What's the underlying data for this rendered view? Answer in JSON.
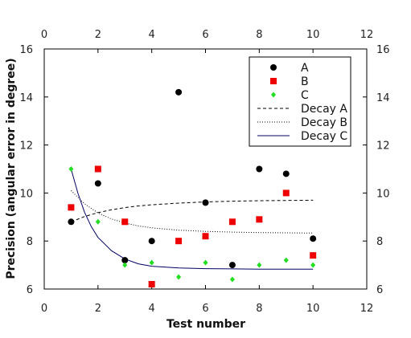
{
  "chart_data": {
    "type": "scatter",
    "xlabel": "Test number",
    "ylabel": "Precision (angular error in degree)",
    "xlim": [
      0,
      12
    ],
    "ylim": [
      6,
      16
    ],
    "xticks": [
      0,
      2,
      4,
      6,
      8,
      10,
      12
    ],
    "yticks": [
      6,
      8,
      10,
      12,
      14,
      16
    ],
    "mirror_ticks_top_right": true,
    "grid": false,
    "legend_position": "top-right",
    "series": [
      {
        "name": "A",
        "kind": "scatter",
        "marker": "circle",
        "color": "#000000",
        "x": [
          1,
          2,
          3,
          4,
          5,
          6,
          7,
          8,
          9,
          10
        ],
        "y": [
          8.8,
          10.4,
          7.2,
          8.0,
          14.2,
          9.6,
          7.0,
          11.0,
          10.8,
          8.1
        ]
      },
      {
        "name": "B",
        "kind": "scatter",
        "marker": "square",
        "color": "#ee0000",
        "x": [
          1,
          2,
          3,
          4,
          5,
          6,
          7,
          8,
          9,
          10
        ],
        "y": [
          9.4,
          11.0,
          8.8,
          6.2,
          8.0,
          8.2,
          8.8,
          8.9,
          10.0,
          7.4
        ]
      },
      {
        "name": "C",
        "kind": "scatter",
        "marker": "diamond",
        "color": "#22dd22",
        "x": [
          1,
          2,
          3,
          4,
          5,
          6,
          7,
          8,
          9,
          10
        ],
        "y": [
          11.0,
          8.8,
          7.0,
          7.1,
          6.5,
          7.1,
          6.4,
          7.0,
          7.2,
          7.0
        ]
      },
      {
        "name": "Decay A",
        "kind": "line",
        "dash": "4,3",
        "color": "#000000",
        "x": [
          1,
          1.5,
          2,
          2.5,
          3,
          3.5,
          4,
          5,
          6,
          7,
          8,
          9,
          10
        ],
        "y": [
          8.8,
          9.02,
          9.18,
          9.3,
          9.39,
          9.46,
          9.51,
          9.58,
          9.63,
          9.66,
          9.68,
          9.69,
          9.7
        ]
      },
      {
        "name": "Decay B",
        "kind": "line",
        "dash": "1,2",
        "color": "#000000",
        "x": [
          1,
          1.5,
          2,
          2.5,
          3,
          3.5,
          4,
          5,
          6,
          7,
          8,
          9,
          10
        ],
        "y": [
          10.1,
          9.55,
          9.17,
          8.92,
          8.75,
          8.63,
          8.55,
          8.45,
          8.4,
          8.37,
          8.35,
          8.34,
          8.33
        ]
      },
      {
        "name": "Decay C",
        "kind": "line",
        "dash": "",
        "color": "#000066",
        "x": [
          1,
          1.25,
          1.5,
          1.75,
          2,
          2.5,
          3,
          3.5,
          4,
          5,
          6,
          7,
          8,
          9,
          10
        ],
        "y": [
          11.0,
          10.0,
          9.2,
          8.6,
          8.15,
          7.6,
          7.25,
          7.05,
          6.95,
          6.88,
          6.85,
          6.84,
          6.83,
          6.83,
          6.83
        ]
      }
    ]
  }
}
